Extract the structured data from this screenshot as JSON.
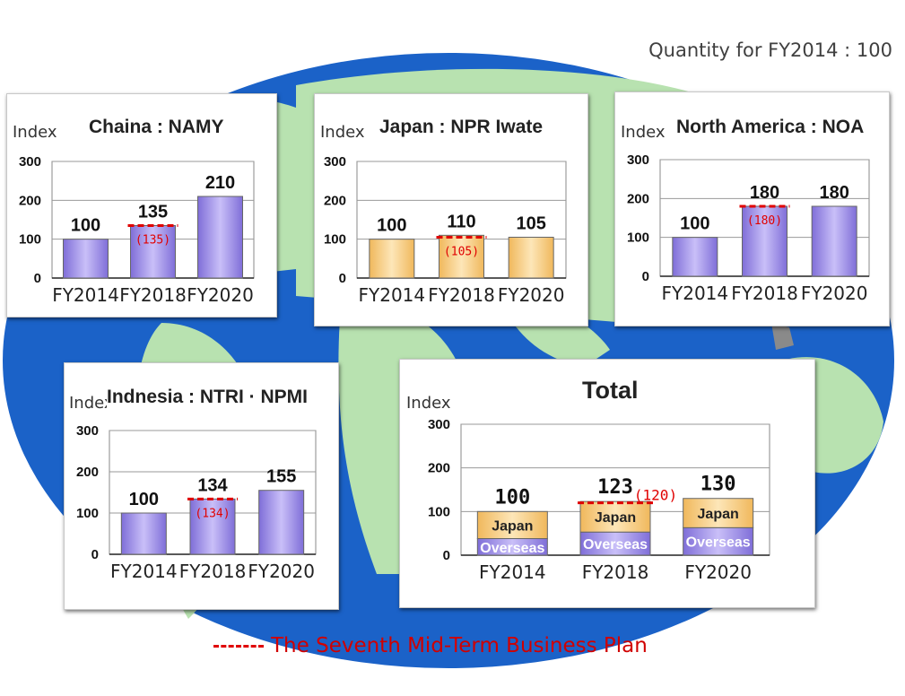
{
  "header": {
    "quantity_note": "Quantity for FY2014 : 100"
  },
  "legend": {
    "plan_label": "The Seventh Mid-Term Business Plan",
    "plan_color": "#e00000"
  },
  "colors": {
    "overseas_bar": "#9b88e8",
    "japan_bar": "#f5c878",
    "map_ocean": "#1b62c8",
    "map_land": "#b8e2b0"
  },
  "chart_data": [
    {
      "type": "bar",
      "title": "Chaina : NAMY",
      "ylabel": "Index",
      "ylim": [
        0,
        300
      ],
      "yticks": [
        0,
        100,
        200,
        300
      ],
      "categories": [
        "FY2014",
        "FY2018",
        "FY2020"
      ],
      "values": [
        100,
        135,
        210
      ],
      "bar_style": "overseas",
      "plan": {
        "category": "FY2018",
        "value": 135,
        "label": "(135)"
      },
      "grid": true
    },
    {
      "type": "bar",
      "title": "Japan : NPR Iwate",
      "ylabel": "Index",
      "ylim": [
        0,
        300
      ],
      "yticks": [
        0,
        100,
        200,
        300
      ],
      "categories": [
        "FY2014",
        "FY2018",
        "FY2020"
      ],
      "values": [
        100,
        110,
        105
      ],
      "bar_style": "japan",
      "plan": {
        "category": "FY2018",
        "value": 105,
        "label": "(105)"
      },
      "grid": true
    },
    {
      "type": "bar",
      "title": "North America : NOA",
      "ylabel": "Index",
      "ylim": [
        0,
        300
      ],
      "yticks": [
        0,
        100,
        200,
        300
      ],
      "categories": [
        "FY2014",
        "FY2018",
        "FY2020"
      ],
      "values": [
        100,
        180,
        180
      ],
      "bar_style": "overseas",
      "plan": {
        "category": "FY2018",
        "value": 180,
        "label": "(180)"
      },
      "grid": true
    },
    {
      "type": "bar",
      "title": "Indnesia : NTRI · NPMI",
      "ylabel": "Index",
      "ylim": [
        0,
        300
      ],
      "yticks": [
        0,
        100,
        200,
        300
      ],
      "categories": [
        "FY2014",
        "FY2018",
        "FY2020"
      ],
      "values": [
        100,
        134,
        155
      ],
      "bar_style": "overseas",
      "plan": {
        "category": "FY2018",
        "value": 134,
        "label": "(134)"
      },
      "grid": true
    },
    {
      "type": "bar",
      "stacked": true,
      "title": "Total",
      "ylabel": "Index",
      "ylim": [
        0,
        300
      ],
      "yticks": [
        0,
        100,
        200,
        300
      ],
      "categories": [
        "FY2014",
        "FY2018",
        "FY2020"
      ],
      "series": [
        {
          "name": "Overseas",
          "values": [
            38,
            53,
            63
          ]
        },
        {
          "name": "Japan",
          "values": [
            62,
            70,
            67
          ]
        }
      ],
      "totals": [
        100,
        123,
        130
      ],
      "plan": {
        "category": "FY2018",
        "value": 120,
        "label": "(120)"
      },
      "grid": true
    }
  ]
}
